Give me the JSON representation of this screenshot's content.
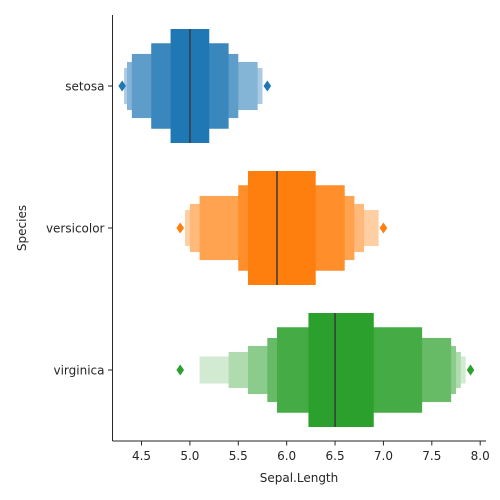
{
  "chart_data": {
    "type": "boxen",
    "orientation": "horizontal",
    "title": "",
    "xlabel": "Sepal.Length",
    "ylabel": "Species",
    "xlim": [
      4.2,
      8.06
    ],
    "xticks": [
      4.5,
      5.0,
      5.5,
      6.0,
      6.5,
      7.0,
      7.5,
      8.0
    ],
    "xtick_labels": [
      "4.5",
      "5.0",
      "5.5",
      "6.0",
      "6.5",
      "7.0",
      "7.5",
      "8.0"
    ],
    "grid": false,
    "categories": [
      "setosa",
      "versicolor",
      "virginica"
    ],
    "series": [
      {
        "category": "setosa",
        "color": "#1f77b4",
        "median": 5.0,
        "boxes": [
          [
            4.8,
            5.2
          ],
          [
            4.6,
            5.4
          ],
          [
            4.4,
            5.5
          ],
          [
            4.35,
            5.7
          ],
          [
            4.32,
            5.75
          ]
        ],
        "outliers": [
          4.3,
          5.8
        ]
      },
      {
        "category": "versicolor",
        "color": "#ff7f0e",
        "median": 5.9,
        "boxes": [
          [
            5.6,
            6.3
          ],
          [
            5.5,
            6.6
          ],
          [
            5.1,
            6.7
          ],
          [
            5.0,
            6.8
          ],
          [
            4.95,
            6.95
          ]
        ],
        "outliers": [
          4.9,
          7.0
        ]
      },
      {
        "category": "virginica",
        "color": "#2ca02c",
        "median": 6.5,
        "boxes": [
          [
            6.225,
            6.9
          ],
          [
            5.9,
            7.4
          ],
          [
            5.8,
            7.7
          ],
          [
            5.6,
            7.75
          ],
          [
            5.4,
            7.8
          ],
          [
            5.1,
            7.85
          ]
        ],
        "outliers": [
          4.9,
          7.9
        ]
      }
    ]
  }
}
